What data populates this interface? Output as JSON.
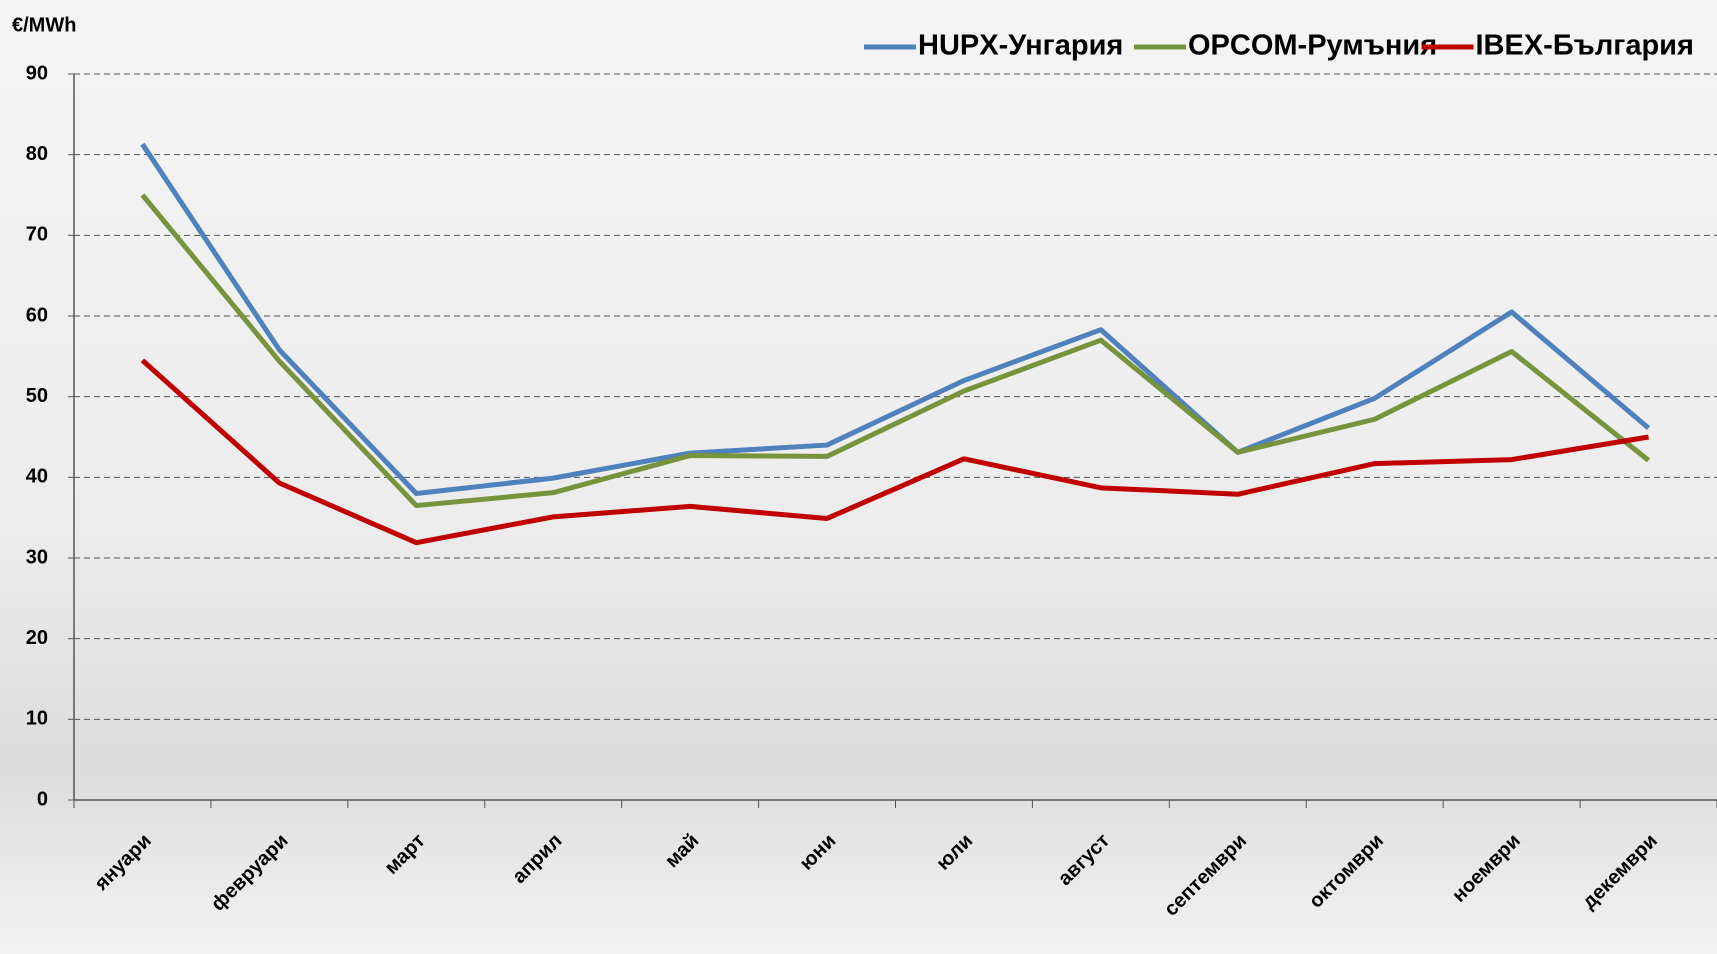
{
  "chart_data": {
    "type": "line",
    "y_label": "€/MWh",
    "categories": [
      "януари",
      "февруари",
      "март",
      "април",
      "май",
      "юни",
      "юли",
      "август",
      "септември",
      "октомври",
      "ноември",
      "декември"
    ],
    "series": [
      {
        "name": "HUPX-Унгария",
        "color": "#4f81bd",
        "values": [
          81.3,
          55.8,
          38.0,
          39.9,
          43.0,
          44.0,
          52.0,
          58.3,
          43.1,
          49.8,
          60.5,
          46.1
        ]
      },
      {
        "name": "OPCOM-Румъния",
        "color": "#77933c",
        "values": [
          75.0,
          54.4,
          36.5,
          38.1,
          42.7,
          42.6,
          50.7,
          57.0,
          43.1,
          47.2,
          55.6,
          42.1
        ]
      },
      {
        "name": "IBEX-България",
        "color": "#c00000",
        "values": [
          54.5,
          39.3,
          31.9,
          35.1,
          36.4,
          34.9,
          42.3,
          38.7,
          37.9,
          41.7,
          42.2,
          45.0
        ]
      }
    ],
    "ylim": [
      0,
      90
    ],
    "yticks": [
      0,
      10,
      20,
      30,
      40,
      50,
      60,
      70,
      80,
      90
    ],
    "grid": true,
    "legend": "top-right"
  }
}
